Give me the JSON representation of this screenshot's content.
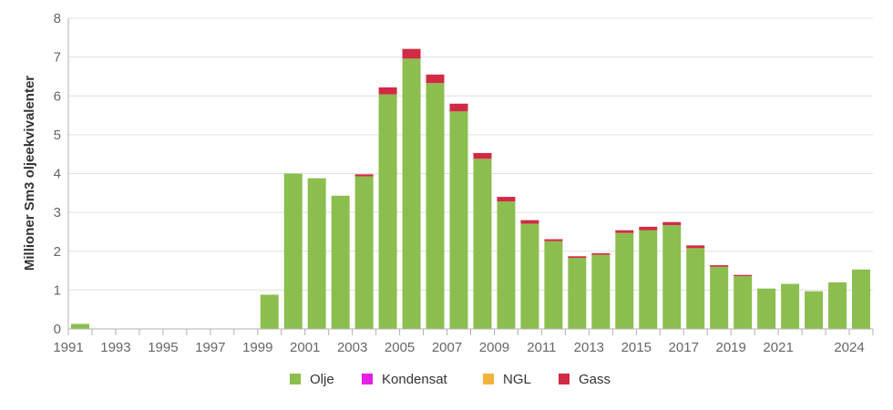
{
  "chart_data": {
    "type": "bar",
    "stacked": true,
    "ylabel": "Millioner Sm3 oljeekvivalenter",
    "ylim": [
      0,
      8
    ],
    "yticks": [
      0,
      1,
      2,
      3,
      4,
      5,
      6,
      7,
      8
    ],
    "grid": true,
    "legend_position": "bottom",
    "categories": [
      1991,
      1992,
      1993,
      1994,
      1995,
      1996,
      1997,
      1998,
      1999,
      2000,
      2001,
      2002,
      2003,
      2004,
      2005,
      2006,
      2007,
      2008,
      2009,
      2010,
      2011,
      2012,
      2013,
      2014,
      2015,
      2016,
      2017,
      2018,
      2019,
      2020,
      2021,
      2022,
      2023,
      2024
    ],
    "xtick_labels": [
      "1991",
      "1993",
      "1995",
      "1997",
      "1999",
      "2001",
      "2003",
      "2005",
      "2007",
      "2009",
      "2011",
      "2013",
      "2015",
      "2017",
      "2019",
      "2021",
      "2024"
    ],
    "series": [
      {
        "name": "Olje",
        "color": "#8bbe4f",
        "values": [
          0.13,
          0,
          0,
          0,
          0,
          0,
          0,
          0,
          0.88,
          4.0,
          3.88,
          3.43,
          3.93,
          6.04,
          6.96,
          6.33,
          5.6,
          4.38,
          3.28,
          2.71,
          2.26,
          1.83,
          1.91,
          2.47,
          2.54,
          2.67,
          2.08,
          1.6,
          1.36,
          1.04,
          1.16,
          0.97,
          1.2,
          1.53
        ]
      },
      {
        "name": "Kondensat",
        "color": "#e61ee6",
        "values": [
          0,
          0,
          0,
          0,
          0,
          0,
          0,
          0,
          0,
          0,
          0,
          0,
          0,
          0,
          0,
          0,
          0,
          0,
          0,
          0,
          0,
          0,
          0,
          0,
          0,
          0,
          0,
          0,
          0,
          0,
          0,
          0,
          0,
          0
        ]
      },
      {
        "name": "NGL",
        "color": "#f0b43c",
        "values": [
          0,
          0,
          0,
          0,
          0,
          0,
          0,
          0,
          0,
          0,
          0,
          0,
          0,
          0,
          0,
          0,
          0,
          0,
          0,
          0,
          0,
          0,
          0,
          0,
          0,
          0,
          0,
          0,
          0,
          0,
          0,
          0,
          0,
          0
        ]
      },
      {
        "name": "Gass",
        "color": "#d12a45",
        "values": [
          0,
          0,
          0,
          0,
          0,
          0,
          0,
          0,
          0,
          0,
          0,
          0,
          0.05,
          0.18,
          0.25,
          0.22,
          0.2,
          0.15,
          0.12,
          0.09,
          0.05,
          0.04,
          0.04,
          0.07,
          0.09,
          0.08,
          0.07,
          0.04,
          0.03,
          0,
          0,
          0,
          0,
          0
        ]
      }
    ]
  }
}
